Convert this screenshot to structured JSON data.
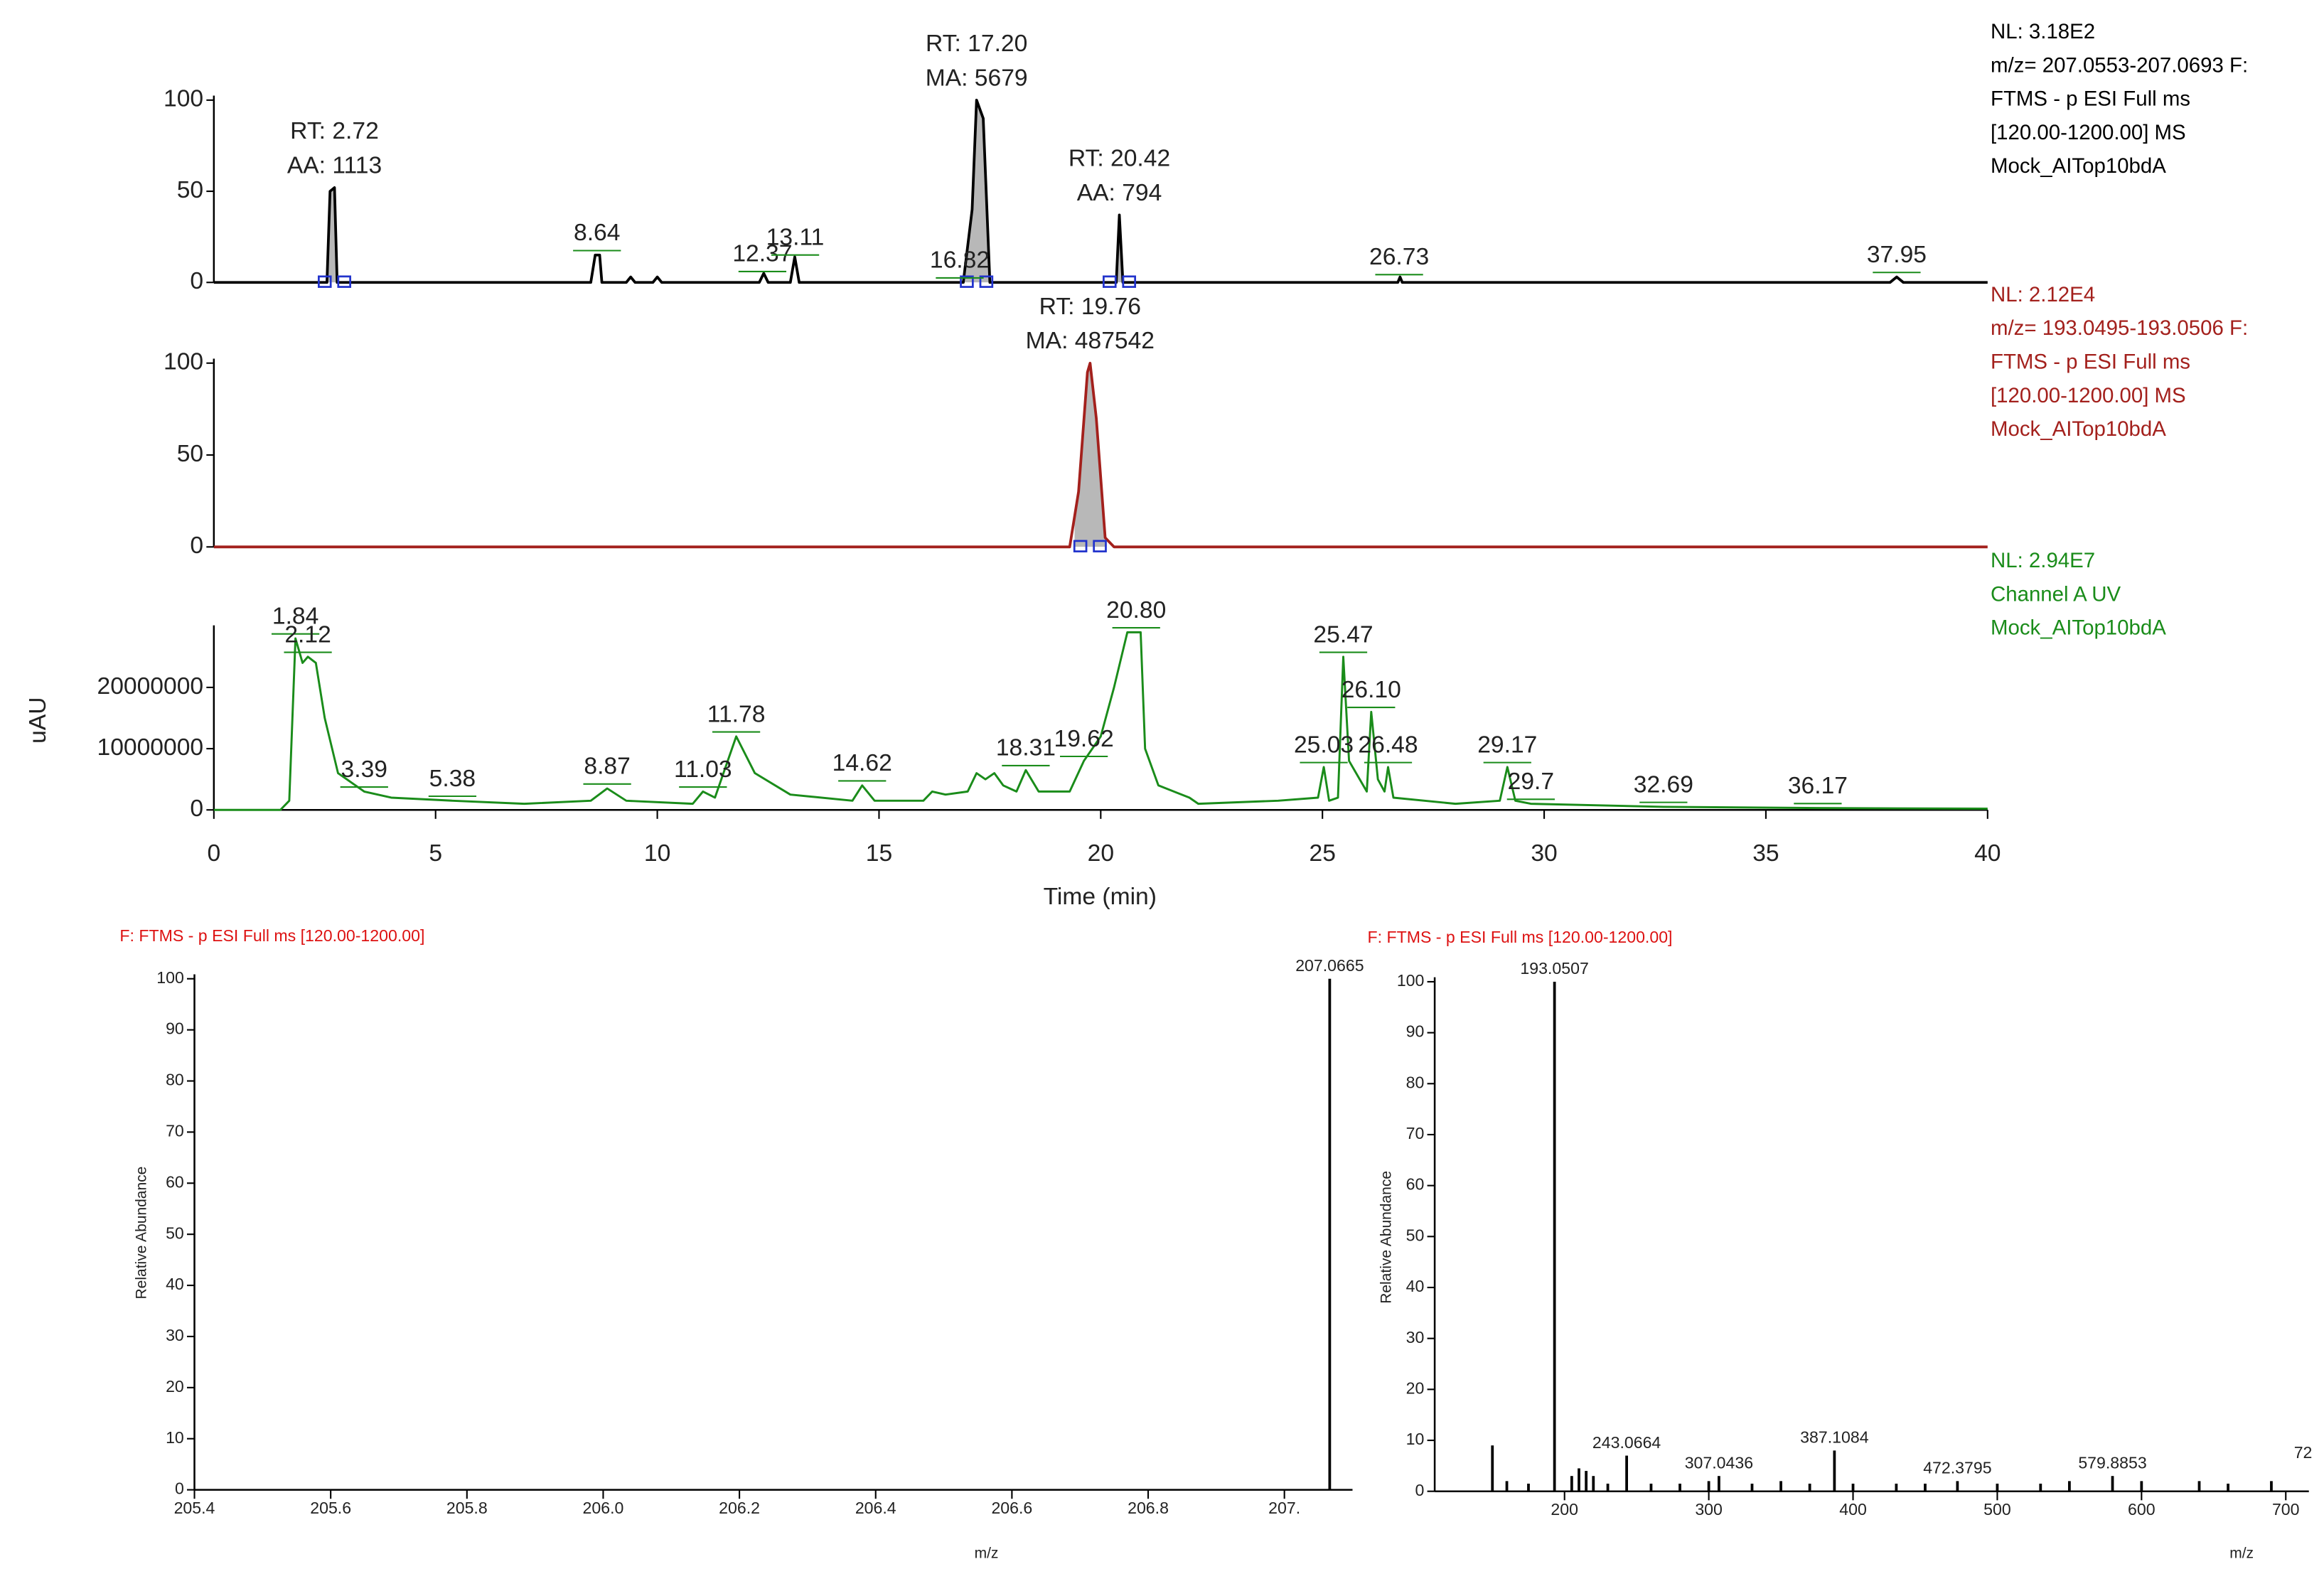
{
  "chart_data": [
    {
      "type": "line",
      "color": "#000000",
      "info": [
        "NL: 3.18E2",
        "m/z= 207.0553-207.0693 F:",
        "FTMS - p ESI Full ms",
        "[120.00-1200.00] MS",
        "Mock_AITop10bdA"
      ],
      "xlim": [
        0,
        40
      ],
      "ylim": [
        0,
        100
      ],
      "yticks": [
        0,
        50,
        100
      ],
      "x": [
        0,
        2.55,
        2.62,
        2.72,
        2.78,
        8.5,
        8.6,
        8.7,
        8.75,
        9.3,
        9.4,
        9.5,
        9.9,
        10,
        10.1,
        12.3,
        12.4,
        12.5,
        13.0,
        13.1,
        13.2,
        16.9,
        17.1,
        17.2,
        17.35,
        17.5,
        20.35,
        20.42,
        20.5,
        26.7,
        26.75,
        26.8,
        37.8,
        37.95,
        38.1,
        40
      ],
      "values": [
        0,
        0,
        50,
        52,
        0,
        0,
        15,
        15,
        0,
        0,
        3,
        0,
        0,
        3,
        0,
        0,
        5,
        0,
        0,
        14,
        0,
        0,
        40,
        100,
        90,
        0,
        0,
        37,
        0,
        0,
        3,
        0,
        0,
        3,
        0,
        0
      ],
      "annotations": [
        {
          "x": 2.72,
          "lines": [
            "RT: 2.72",
            "AA: 1113"
          ]
        },
        {
          "x": 17.2,
          "lines": [
            "RT: 17.20",
            "MA: 5679"
          ]
        },
        {
          "x": 20.42,
          "lines": [
            "RT: 20.42",
            "AA: 794"
          ]
        }
      ],
      "peak_labels": [
        8.64,
        12.37,
        13.11,
        16.82,
        26.73,
        37.95
      ]
    },
    {
      "type": "line",
      "color": "#a3201c",
      "info": [
        "NL: 2.12E4",
        "m/z= 193.0495-193.0506 F:",
        "FTMS - p ESI Full ms",
        "[120.00-1200.00] MS",
        "Mock_AITop10bdA"
      ],
      "xlim": [
        0,
        40
      ],
      "ylim": [
        0,
        100
      ],
      "yticks": [
        0,
        50,
        100
      ],
      "x": [
        0,
        19.3,
        19.5,
        19.7,
        19.76,
        19.9,
        20.1,
        20.3,
        40
      ],
      "values": [
        0,
        0,
        30,
        95,
        100,
        70,
        5,
        0,
        0
      ],
      "annotations": [
        {
          "x": 19.76,
          "lines": [
            "RT: 19.76",
            "MA: 487542"
          ]
        }
      ],
      "peak_labels": []
    },
    {
      "type": "line",
      "color": "#1a8c1a",
      "info": [
        "NL: 2.94E7",
        "Channel A  UV",
        "Mock_AITop10bdA"
      ],
      "xlabel": "Time (min)",
      "ylabel": "uAU",
      "xlim": [
        0,
        40
      ],
      "ylim": [
        0,
        29400000
      ],
      "xticks": [
        0,
        5,
        10,
        15,
        20,
        25,
        30,
        35,
        40
      ],
      "yticks": [
        0,
        10000000,
        20000000
      ],
      "x": [
        0,
        1.5,
        1.7,
        1.84,
        2.0,
        2.12,
        2.3,
        2.5,
        2.8,
        3.39,
        4,
        5.38,
        7,
        8.5,
        8.87,
        9.3,
        10.8,
        11.03,
        11.3,
        11.78,
        12.2,
        13,
        14.4,
        14.62,
        14.9,
        16,
        16.2,
        16.5,
        17,
        17.2,
        17.4,
        17.6,
        17.8,
        18.1,
        18.31,
        18.6,
        19.3,
        19.62,
        20.0,
        20.3,
        20.6,
        20.9,
        21.0,
        21.3,
        22.0,
        22.2,
        24,
        24.9,
        25.03,
        25.15,
        25.35,
        25.47,
        25.6,
        26.0,
        26.1,
        26.25,
        26.4,
        26.48,
        26.6,
        28,
        29.0,
        29.17,
        29.35,
        29.7,
        32.69,
        36.17,
        40
      ],
      "values": [
        0,
        0,
        1500000,
        28000000,
        24000000,
        25000000,
        24000000,
        15000000,
        6000000,
        3000000,
        2000000,
        1500000,
        1000000,
        1500000,
        3500000,
        1500000,
        1000000,
        3000000,
        2000000,
        12000000,
        6000000,
        2500000,
        1500000,
        4000000,
        1500000,
        1500000,
        3000000,
        2500000,
        3000000,
        6000000,
        5000000,
        6000000,
        4000000,
        3000000,
        6500000,
        3000000,
        3000000,
        8000000,
        12000000,
        20000000,
        29000000,
        29000000,
        10000000,
        4000000,
        2000000,
        1000000,
        1500000,
        2000000,
        7000000,
        1500000,
        2000000,
        25000000,
        8000000,
        3000000,
        16000000,
        5000000,
        3000000,
        7000000,
        2000000,
        1000000,
        1500000,
        7000000,
        1500000,
        1000000,
        500000,
        300000,
        200000
      ],
      "annotations": [],
      "peak_labels": [
        1.84,
        2.12,
        3.39,
        5.38,
        8.87,
        11.03,
        11.78,
        14.62,
        18.31,
        19.62,
        {
          "value": 20.8,
          "label": "20.80"
        },
        25.03,
        25.47,
        {
          "value": 26.1,
          "label": "26.10"
        },
        26.48,
        29.17,
        29.7,
        32.69,
        36.17
      ]
    },
    {
      "type": "bar",
      "color": "#000000",
      "title": "F: FTMS - p ESI Full ms [120.00-1200.00]",
      "xlabel": "m/z",
      "ylabel": "Relative Abundance",
      "xlim": [
        205.4,
        207.1
      ],
      "ylim": [
        0,
        100
      ],
      "xticks": [
        205.4,
        205.6,
        205.8,
        {
          "value": 206,
          "label": "206.0"
        },
        206.2,
        206.4,
        206.6,
        206.8,
        {
          "value": 207,
          "label": "207."
        }
      ],
      "yticks": [
        0,
        10,
        20,
        30,
        40,
        50,
        60,
        70,
        80,
        90,
        100
      ],
      "x": [
        207.0665
      ],
      "values": [
        100
      ],
      "peak_labels": [
        207.0665
      ],
      "annotations": []
    },
    {
      "type": "bar",
      "color": "#000000",
      "title": "F: FTMS - p ESI Full ms [120.00-1200.00]",
      "xlabel": "m/z",
      "ylabel": "Relative Abundance",
      "xlim": [
        110,
        716
      ],
      "ylim": [
        0,
        100
      ],
      "xticks": [
        200,
        300,
        400,
        500,
        600,
        700
      ],
      "yticks": [
        0,
        10,
        20,
        30,
        40,
        50,
        60,
        70,
        80,
        90,
        100
      ],
      "x": [
        150,
        160,
        175,
        193.0507,
        205,
        210,
        215,
        220,
        230,
        243.0664,
        260,
        280,
        300,
        307.0436,
        330,
        350,
        370,
        387.1084,
        400,
        430,
        450,
        472.3795,
        500,
        530,
        550,
        579.8853,
        600,
        640,
        660,
        690
      ],
      "values": [
        9,
        2,
        1.5,
        100,
        3,
        4.5,
        4,
        3,
        1.5,
        7,
        1.5,
        1.5,
        2,
        3,
        1.5,
        2,
        1.5,
        8,
        1.5,
        1.5,
        1.5,
        2,
        1.5,
        1.5,
        2,
        3,
        2,
        2,
        1.5,
        2
      ],
      "peak_labels": [
        193.0507,
        243.0664,
        307.0436,
        387.1084,
        472.3795,
        579.8853
      ],
      "annotations": [
        "72"
      ]
    }
  ]
}
